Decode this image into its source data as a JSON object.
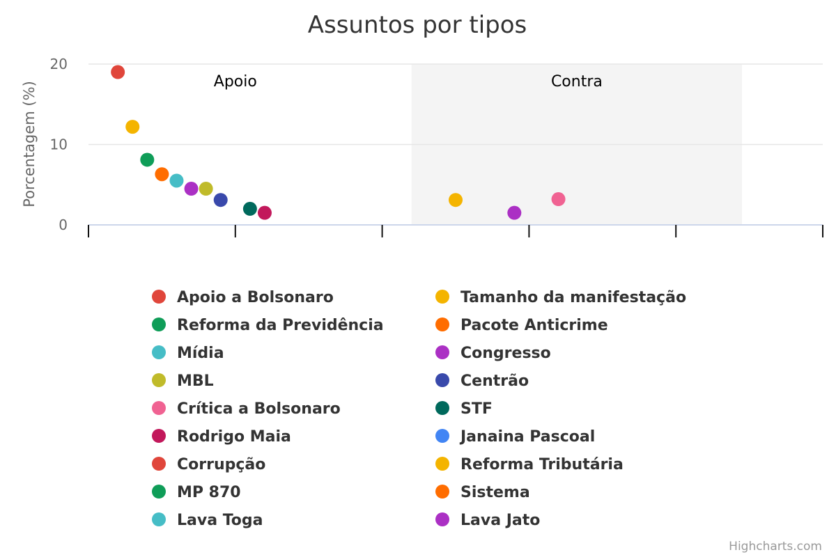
{
  "chart_data": {
    "type": "scatter",
    "title": "Assuntos por tipos",
    "ylabel": "Porcentagem (%)",
    "xlabel": "",
    "ylim": [
      0,
      20
    ],
    "yticks": [
      0,
      10,
      20
    ],
    "xlim": [
      -0.5,
      4.5
    ],
    "grid": true,
    "legend_position": "bottom",
    "plot_bands": [
      {
        "label": "Apoio",
        "from": -0.5,
        "to": 1.5,
        "color": "#ffffff"
      },
      {
        "label": "Contra",
        "from": 1.7,
        "to": 3.95,
        "color": "#f4f4f4"
      }
    ],
    "series": [
      {
        "name": "Apoio a Bolsonaro",
        "color": "#e0463b",
        "x": -0.3,
        "y": 19.0
      },
      {
        "name": "Tamanho da manifestação",
        "color": "#f4b400",
        "x": -0.2,
        "y": 12.2
      },
      {
        "name": "Reforma da Previdência",
        "color": "#0f9d58",
        "x": -0.1,
        "y": 8.1
      },
      {
        "name": "Pacote Anticrime",
        "color": "#ff6d00",
        "x": 0.0,
        "y": 6.3
      },
      {
        "name": "Mídia",
        "color": "#46bdc6",
        "x": 0.1,
        "y": 5.5
      },
      {
        "name": "Congresso",
        "color": "#ab30c4",
        "x": 0.2,
        "y": 4.5
      },
      {
        "name": "MBL",
        "color": "#c0bb2a",
        "x": 0.3,
        "y": 4.5
      },
      {
        "name": "Centrão",
        "color": "#3949ab",
        "x": 0.4,
        "y": 3.1
      },
      {
        "name": "STF",
        "color": "#00695c",
        "x": 0.6,
        "y": 2.0
      },
      {
        "name": "Rodrigo Maia",
        "color": "#c2185b",
        "x": 0.7,
        "y": 1.5
      },
      {
        "name": "Tamanho da manifestação",
        "color": "#f4b400",
        "x": 2.0,
        "y": 3.1
      },
      {
        "name": "Congresso",
        "color": "#ab30c4",
        "x": 2.4,
        "y": 1.5
      },
      {
        "name": "Crítica a Bolsonaro",
        "color": "#f06292",
        "x": 2.7,
        "y": 3.2
      }
    ]
  },
  "legend": {
    "items": [
      {
        "label": "Apoio a Bolsonaro",
        "color": "#e0463b"
      },
      {
        "label": "Tamanho da manifestação",
        "color": "#f4b400"
      },
      {
        "label": "Reforma da Previdência",
        "color": "#0f9d58"
      },
      {
        "label": "Pacote Anticrime",
        "color": "#ff6d00"
      },
      {
        "label": "Mídia",
        "color": "#46bdc6"
      },
      {
        "label": "Congresso",
        "color": "#ab30c4"
      },
      {
        "label": "MBL",
        "color": "#c0bb2a"
      },
      {
        "label": "Centrão",
        "color": "#3949ab"
      },
      {
        "label": "Crítica a Bolsonaro",
        "color": "#f06292"
      },
      {
        "label": "STF",
        "color": "#00695c"
      },
      {
        "label": "Rodrigo Maia",
        "color": "#c2185b"
      },
      {
        "label": "Janaina Pascoal",
        "color": "#4285f4"
      },
      {
        "label": "Corrupção",
        "color": "#e0463b"
      },
      {
        "label": "Reforma Tributária",
        "color": "#f4b400"
      },
      {
        "label": "MP 870",
        "color": "#0f9d58"
      },
      {
        "label": "Sistema",
        "color": "#ff6d00"
      },
      {
        "label": "Lava Toga",
        "color": "#46bdc6"
      },
      {
        "label": "Lava Jato",
        "color": "#ab30c4"
      }
    ]
  },
  "credits": "Highcharts.com"
}
